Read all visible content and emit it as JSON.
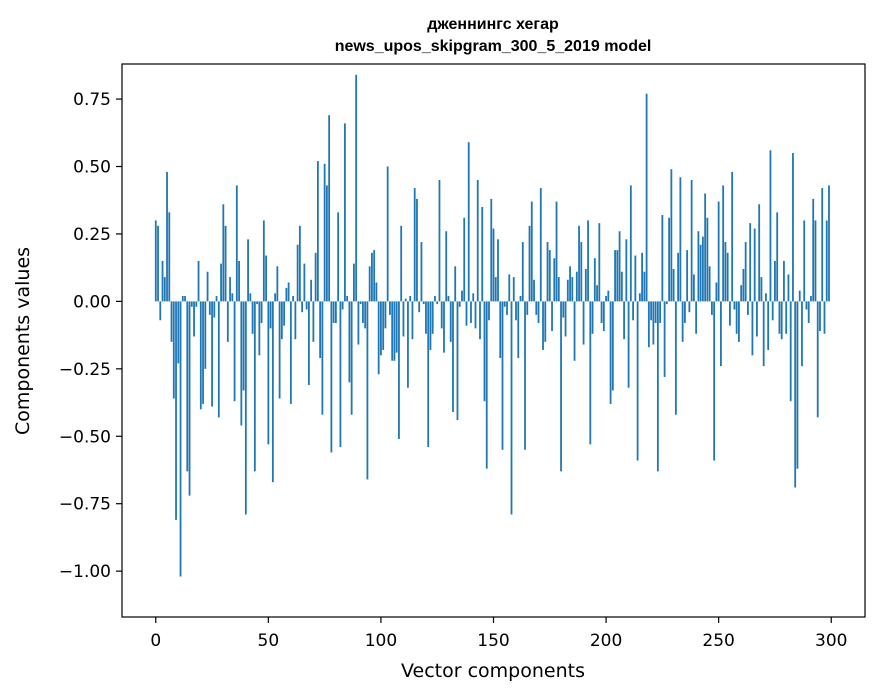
{
  "chart_data": {
    "type": "bar",
    "title": "дженнингс хегар",
    "subtitle": "news_upos_skipgram_300_5_2019 model",
    "xlabel": "Vector components",
    "ylabel": "Components values",
    "xlim": [
      -15,
      315
    ],
    "ylim": [
      -1.17,
      0.88
    ],
    "xticks": [
      0,
      50,
      100,
      150,
      200,
      250,
      300
    ],
    "yticks": [
      0.75,
      0.5,
      0.25,
      0.0,
      -0.25,
      -0.5,
      -0.75,
      -1.0
    ],
    "ytick_labels": [
      "0.75",
      "0.50",
      "0.25",
      "0.00",
      "−0.25",
      "−0.50",
      "−0.75",
      "−1.00"
    ],
    "grid": false,
    "bar_color": "#1f77b4",
    "values": [
      0.3,
      0.28,
      -0.07,
      0.15,
      0.09,
      0.48,
      0.33,
      -0.15,
      -0.36,
      -0.81,
      -0.23,
      -1.02,
      0.02,
      0.02,
      -0.63,
      -0.72,
      -0.02,
      -0.13,
      -0.02,
      0.15,
      -0.4,
      -0.38,
      -0.25,
      0.11,
      -0.05,
      -0.39,
      -0.06,
      0.02,
      -0.43,
      0.14,
      0.36,
      0.28,
      -0.15,
      0.09,
      0.03,
      -0.37,
      0.43,
      0.15,
      -0.46,
      -0.33,
      -0.79,
      0.23,
      0.03,
      -0.12,
      -0.63,
      -0.01,
      -0.2,
      -0.08,
      0.3,
      0.17,
      -0.53,
      -0.1,
      -0.67,
      0.03,
      0.13,
      -0.36,
      -0.14,
      -0.09,
      0.05,
      0.07,
      -0.38,
      0.02,
      -0.14,
      0.21,
      0.28,
      -0.04,
      0.14,
      -0.03,
      -0.31,
      0.08,
      -0.15,
      0.18,
      0.52,
      -0.21,
      -0.42,
      0.51,
      0.43,
      0.69,
      -0.56,
      -0.08,
      -0.08,
      0.33,
      -0.54,
      -0.03,
      0.66,
      0.02,
      -0.3,
      -0.42,
      0.14,
      0.84,
      -0.16,
      -0.01,
      -0.08,
      -0.1,
      -0.66,
      0.13,
      0.18,
      0.19,
      0.07,
      -0.27,
      -0.2,
      -0.18,
      -0.1,
      0.5,
      -0.05,
      -0.22,
      -0.22,
      -0.19,
      -0.51,
      0.28,
      -0.13,
      0.01,
      -0.32,
      0.02,
      -0.14,
      0.42,
      0.38,
      -0.04,
      0.22,
      -0.01,
      -0.12,
      -0.54,
      -0.18,
      -0.12,
      0.02,
      -0.01,
      0.45,
      -0.1,
      -0.19,
      0.26,
      0.02,
      -0.15,
      -0.41,
      0.13,
      -0.44,
      -0.02,
      0.04,
      0.31,
      -0.09,
      0.59,
      -0.08,
      0.03,
      -0.1,
      0.45,
      -0.14,
      0.35,
      -0.37,
      -0.62,
      -0.07,
      0.38,
      0.27,
      0.09,
      0.23,
      -0.21,
      -0.55,
      -0.02,
      -0.05,
      0.1,
      -0.79,
      0.09,
      -0.07,
      -0.21,
      0.02,
      0.22,
      -0.55,
      -0.05,
      0.28,
      0.37,
      0.08,
      -0.05,
      -0.08,
      0.42,
      -0.18,
      -0.15,
      0.22,
      0.19,
      -0.11,
      0.16,
      0.37,
      0.09,
      -0.63,
      -0.06,
      -0.13,
      0.08,
      0.13,
      0.09,
      -0.22,
      0.11,
      0.28,
      0.22,
      -0.16,
      0.12,
      0.3,
      -0.53,
      -0.12,
      0.16,
      0.06,
      0.29,
      -0.08,
      -0.11,
      0.02,
      0.04,
      -0.38,
      -0.33,
      0.19,
      0.19,
      0.26,
      0.11,
      -0.14,
      0.23,
      -0.32,
      0.43,
      -0.07,
      0.17,
      -0.59,
      0.03,
      0.18,
      0.11,
      0.77,
      -0.17,
      -0.07,
      -0.16,
      -0.08,
      -0.63,
      -0.08,
      0.32,
      -0.28,
      -0.01,
      0.31,
      0.49,
      0.12,
      -0.42,
      0.18,
      0.46,
      -0.15,
      -0.08,
      0.19,
      -0.04,
      0.45,
      0.1,
      -0.12,
      0.26,
      0.21,
      0.24,
      0.4,
      0.31,
      0.13,
      -0.05,
      -0.59,
      0.07,
      0.37,
      -0.24,
      0.43,
      0.22,
      0.18,
      -0.09,
      0.48,
      -0.03,
      -0.12,
      -0.15,
      0.06,
      0.12,
      0.22,
      -0.05,
      0.29,
      -0.2,
      0.27,
      -0.13,
      0.36,
      0.09,
      -0.24,
      0.03,
      -0.18,
      0.56,
      -0.07,
      0.15,
      0.33,
      -0.12,
      -0.14,
      0.15,
      -0.12,
      0.1,
      -0.37,
      0.55,
      -0.69,
      -0.62,
      0.04,
      -0.24,
      0.3,
      -0.03,
      -0.08,
      0.02,
      0.38,
      0.3,
      -0.43,
      -0.11,
      0.42,
      -0.12,
      0.3,
      0.43
    ]
  }
}
